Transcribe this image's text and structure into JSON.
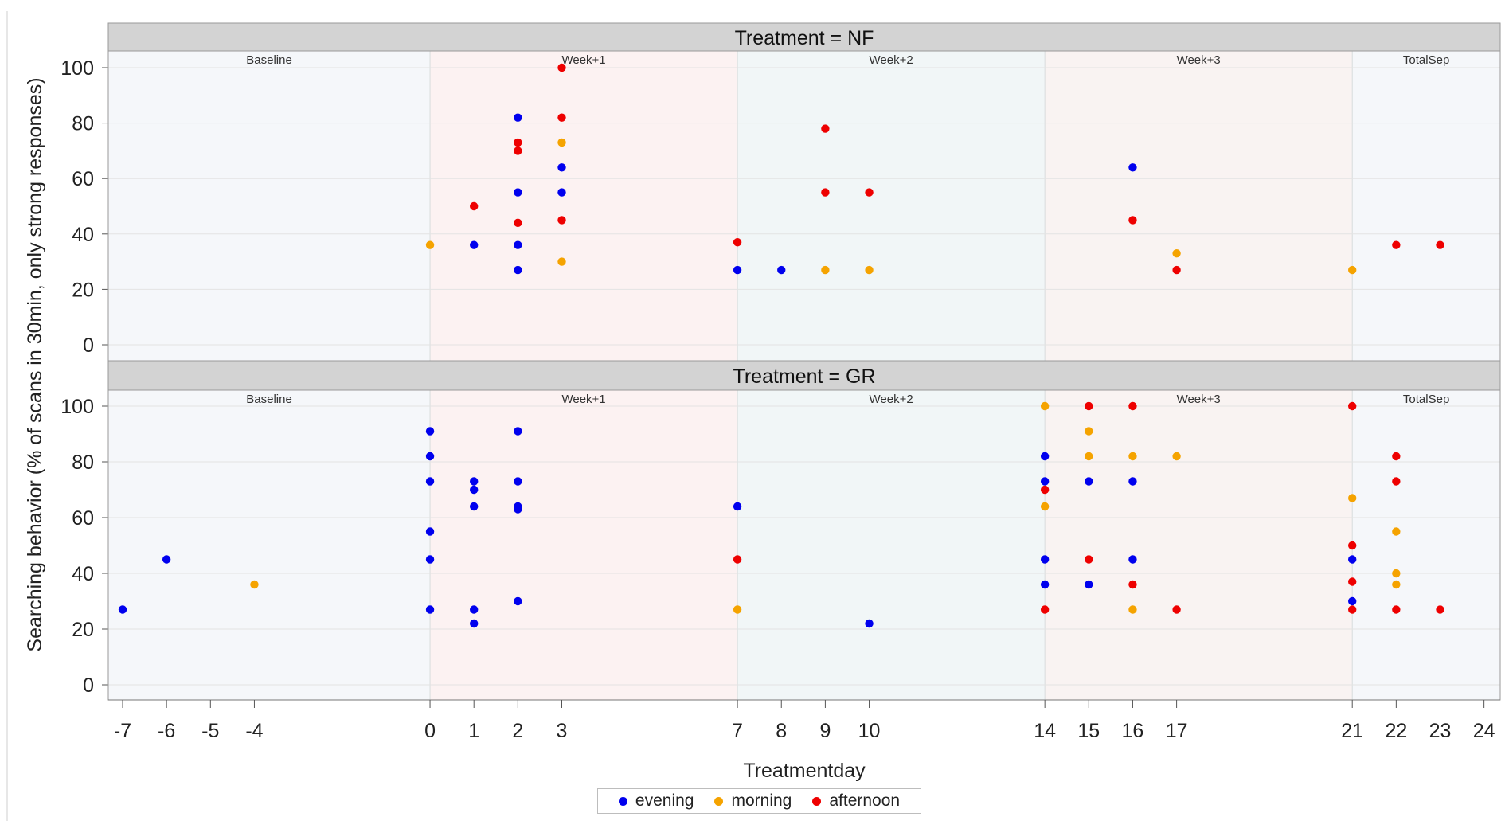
{
  "chart_data": {
    "type": "scatter",
    "xlabel": "Treatmentday",
    "ylabel": "Searching behavior (% of scans in 30min, only strong responses)",
    "x_ticks": [
      -7,
      -6,
      -5,
      -4,
      0,
      1,
      2,
      3,
      7,
      8,
      9,
      10,
      14,
      15,
      16,
      17,
      21,
      22,
      23,
      24
    ],
    "y_ticks": [
      0,
      20,
      40,
      60,
      80,
      100
    ],
    "ylim": [
      0,
      100
    ],
    "grid": true,
    "legend_position": "bottom",
    "series_colors": {
      "evening": "#0000ee",
      "morning": "#f5a300",
      "afternoon": "#ee0000"
    },
    "legend": [
      "evening",
      "morning",
      "afternoon"
    ],
    "periods": [
      {
        "label": "Baseline",
        "start": -7.5,
        "end": 0,
        "color": "#f5f7fa"
      },
      {
        "label": "Week+1",
        "start": 0,
        "end": 7,
        "color": "#fcf2f2"
      },
      {
        "label": "Week+2",
        "start": 7,
        "end": 14,
        "color": "#f1f6f7"
      },
      {
        "label": "Week+3",
        "start": 14,
        "end": 21,
        "color": "#f9f3f2"
      },
      {
        "label": "TotalSep",
        "start": 21,
        "end": 24.4,
        "color": "#f5f7fa"
      }
    ],
    "panels": [
      {
        "title": "Treatment = NF",
        "points": [
          {
            "x": 0,
            "y": 36,
            "series": "morning"
          },
          {
            "x": 1,
            "y": 36,
            "series": "evening"
          },
          {
            "x": 1,
            "y": 50,
            "series": "afternoon"
          },
          {
            "x": 2,
            "y": 82,
            "series": "evening"
          },
          {
            "x": 2,
            "y": 73,
            "series": "afternoon"
          },
          {
            "x": 2,
            "y": 70,
            "series": "afternoon"
          },
          {
            "x": 2,
            "y": 55,
            "series": "evening"
          },
          {
            "x": 2,
            "y": 44,
            "series": "afternoon"
          },
          {
            "x": 2,
            "y": 36,
            "series": "evening"
          },
          {
            "x": 2,
            "y": 27,
            "series": "evening"
          },
          {
            "x": 3,
            "y": 100,
            "series": "afternoon"
          },
          {
            "x": 3,
            "y": 82,
            "series": "afternoon"
          },
          {
            "x": 3,
            "y": 73,
            "series": "morning"
          },
          {
            "x": 3,
            "y": 64,
            "series": "evening"
          },
          {
            "x": 3,
            "y": 55,
            "series": "evening"
          },
          {
            "x": 3,
            "y": 45,
            "series": "afternoon"
          },
          {
            "x": 3,
            "y": 30,
            "series": "morning"
          },
          {
            "x": 7,
            "y": 37,
            "series": "afternoon"
          },
          {
            "x": 7,
            "y": 27,
            "series": "evening"
          },
          {
            "x": 8,
            "y": 27,
            "series": "evening"
          },
          {
            "x": 9,
            "y": 78,
            "series": "afternoon"
          },
          {
            "x": 9,
            "y": 55,
            "series": "afternoon"
          },
          {
            "x": 9,
            "y": 27,
            "series": "morning"
          },
          {
            "x": 10,
            "y": 55,
            "series": "afternoon"
          },
          {
            "x": 10,
            "y": 27,
            "series": "morning"
          },
          {
            "x": 16,
            "y": 64,
            "series": "evening"
          },
          {
            "x": 16,
            "y": 45,
            "series": "afternoon"
          },
          {
            "x": 17,
            "y": 33,
            "series": "morning"
          },
          {
            "x": 17,
            "y": 27,
            "series": "afternoon"
          },
          {
            "x": 21,
            "y": 27,
            "series": "morning"
          },
          {
            "x": 22,
            "y": 36,
            "series": "afternoon"
          },
          {
            "x": 23,
            "y": 36,
            "series": "afternoon"
          }
        ]
      },
      {
        "title": "Treatment = GR",
        "points": [
          {
            "x": -7,
            "y": 27,
            "series": "evening"
          },
          {
            "x": -6,
            "y": 45,
            "series": "evening"
          },
          {
            "x": -4,
            "y": 36,
            "series": "morning"
          },
          {
            "x": 0,
            "y": 91,
            "series": "evening"
          },
          {
            "x": 0,
            "y": 82,
            "series": "evening"
          },
          {
            "x": 0,
            "y": 73,
            "series": "evening"
          },
          {
            "x": 0,
            "y": 55,
            "series": "evening"
          },
          {
            "x": 0,
            "y": 45,
            "series": "evening"
          },
          {
            "x": 0,
            "y": 27,
            "series": "evening"
          },
          {
            "x": 1,
            "y": 73,
            "series": "evening"
          },
          {
            "x": 1,
            "y": 70,
            "series": "evening"
          },
          {
            "x": 1,
            "y": 64,
            "series": "evening"
          },
          {
            "x": 1,
            "y": 27,
            "series": "evening"
          },
          {
            "x": 1,
            "y": 22,
            "series": "evening"
          },
          {
            "x": 2,
            "y": 91,
            "series": "evening"
          },
          {
            "x": 2,
            "y": 73,
            "series": "evening"
          },
          {
            "x": 2,
            "y": 64,
            "series": "evening"
          },
          {
            "x": 2,
            "y": 63,
            "series": "evening"
          },
          {
            "x": 2,
            "y": 30,
            "series": "evening"
          },
          {
            "x": 7,
            "y": 64,
            "series": "evening"
          },
          {
            "x": 7,
            "y": 45,
            "series": "afternoon"
          },
          {
            "x": 7,
            "y": 27,
            "series": "morning"
          },
          {
            "x": 10,
            "y": 22,
            "series": "evening"
          },
          {
            "x": 14,
            "y": 100,
            "series": "morning"
          },
          {
            "x": 14,
            "y": 82,
            "series": "evening"
          },
          {
            "x": 14,
            "y": 73,
            "series": "evening"
          },
          {
            "x": 14,
            "y": 70,
            "series": "afternoon"
          },
          {
            "x": 14,
            "y": 64,
            "series": "morning"
          },
          {
            "x": 14,
            "y": 45,
            "series": "evening"
          },
          {
            "x": 14,
            "y": 36,
            "series": "evening"
          },
          {
            "x": 14,
            "y": 27,
            "series": "afternoon"
          },
          {
            "x": 15,
            "y": 100,
            "series": "afternoon"
          },
          {
            "x": 15,
            "y": 91,
            "series": "morning"
          },
          {
            "x": 15,
            "y": 82,
            "series": "morning"
          },
          {
            "x": 15,
            "y": 73,
            "series": "evening"
          },
          {
            "x": 15,
            "y": 45,
            "series": "afternoon"
          },
          {
            "x": 15,
            "y": 36,
            "series": "evening"
          },
          {
            "x": 16,
            "y": 100,
            "series": "afternoon"
          },
          {
            "x": 16,
            "y": 82,
            "series": "morning"
          },
          {
            "x": 16,
            "y": 73,
            "series": "evening"
          },
          {
            "x": 16,
            "y": 45,
            "series": "evening"
          },
          {
            "x": 16,
            "y": 36,
            "series": "afternoon"
          },
          {
            "x": 16,
            "y": 27,
            "series": "morning"
          },
          {
            "x": 17,
            "y": 82,
            "series": "morning"
          },
          {
            "x": 17,
            "y": 27,
            "series": "afternoon"
          },
          {
            "x": 21,
            "y": 100,
            "series": "afternoon"
          },
          {
            "x": 21,
            "y": 67,
            "series": "morning"
          },
          {
            "x": 21,
            "y": 50,
            "series": "afternoon"
          },
          {
            "x": 21,
            "y": 45,
            "series": "evening"
          },
          {
            "x": 21,
            "y": 37,
            "series": "afternoon"
          },
          {
            "x": 21,
            "y": 30,
            "series": "evening"
          },
          {
            "x": 21,
            "y": 27,
            "series": "afternoon"
          },
          {
            "x": 22,
            "y": 82,
            "series": "afternoon"
          },
          {
            "x": 22,
            "y": 73,
            "series": "afternoon"
          },
          {
            "x": 22,
            "y": 55,
            "series": "morning"
          },
          {
            "x": 22,
            "y": 40,
            "series": "morning"
          },
          {
            "x": 22,
            "y": 36,
            "series": "morning"
          },
          {
            "x": 22,
            "y": 27,
            "series": "afternoon"
          },
          {
            "x": 23,
            "y": 27,
            "series": "afternoon"
          }
        ]
      }
    ]
  }
}
